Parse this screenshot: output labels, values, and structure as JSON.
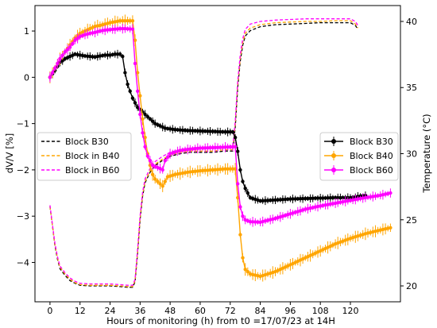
{
  "chart_data": {
    "type": "line",
    "xlabel": "Hours of monitoring (h) from t0 =17/07/23 at 14H",
    "ylabel_left": "dV/V [%]",
    "ylabel_right": "Temperature (°C)",
    "xlim": [
      -6,
      140
    ],
    "ylim_left": [
      -4.85,
      1.55
    ],
    "ylim_right": [
      18.8,
      41.2
    ],
    "xticks": [
      0,
      12,
      24,
      36,
      48,
      60,
      72,
      84,
      96,
      108,
      120
    ],
    "yticks_left": [
      1,
      0,
      -1,
      -2,
      -3,
      -4
    ],
    "yticks_right": [
      40,
      35,
      30,
      25,
      20
    ],
    "grid": false,
    "legend_left": {
      "placement": "center-left",
      "entries": [
        {
          "name": "Block B30",
          "color": "#000000",
          "style": "dashed"
        },
        {
          "name": "Block in B40",
          "color": "#ffa500",
          "style": "dashed"
        },
        {
          "name": "Block in B60",
          "color": "#ff00ff",
          "style": "dashed"
        }
      ]
    },
    "legend_right": {
      "placement": "center-right",
      "entries": [
        {
          "name": "Block B30",
          "color": "#000000",
          "style": "marker"
        },
        {
          "name": "Block B40",
          "color": "#ffa500",
          "style": "marker"
        },
        {
          "name": "Block B60",
          "color": "#ff00ff",
          "style": "marker"
        }
      ]
    },
    "dvv_series": [
      {
        "name": "Block B30",
        "color": "#000000",
        "points": [
          [
            0,
            0
          ],
          [
            2,
            0.15
          ],
          [
            4,
            0.32
          ],
          [
            6,
            0.4
          ],
          [
            8,
            0.45
          ],
          [
            10,
            0.5
          ],
          [
            12,
            0.48
          ],
          [
            14,
            0.46
          ],
          [
            16,
            0.45
          ],
          [
            18,
            0.44
          ],
          [
            20,
            0.46
          ],
          [
            22,
            0.48
          ],
          [
            24,
            0.48
          ],
          [
            26,
            0.5
          ],
          [
            28,
            0.5
          ],
          [
            29,
            0.45
          ],
          [
            30,
            0.1
          ],
          [
            31,
            -0.15
          ],
          [
            33,
            -0.45
          ],
          [
            35,
            -0.65
          ],
          [
            38,
            -0.8
          ],
          [
            40,
            -0.9
          ],
          [
            42,
            -1.0
          ],
          [
            44,
            -1.05
          ],
          [
            46,
            -1.1
          ],
          [
            50,
            -1.13
          ],
          [
            55,
            -1.15
          ],
          [
            60,
            -1.16
          ],
          [
            65,
            -1.17
          ],
          [
            70,
            -1.18
          ],
          [
            73,
            -1.18
          ],
          [
            74,
            -1.3
          ],
          [
            75,
            -1.6
          ],
          [
            76,
            -2.0
          ],
          [
            77,
            -2.25
          ],
          [
            78,
            -2.4
          ],
          [
            80,
            -2.6
          ],
          [
            84,
            -2.67
          ],
          [
            90,
            -2.65
          ],
          [
            96,
            -2.63
          ],
          [
            102,
            -2.62
          ],
          [
            108,
            -2.61
          ],
          [
            114,
            -2.6
          ],
          [
            120,
            -2.6
          ],
          [
            126,
            -2.55
          ]
        ]
      },
      {
        "name": "Block B40",
        "color": "#ffa500",
        "points": [
          [
            0,
            0
          ],
          [
            2,
            0.2
          ],
          [
            4,
            0.4
          ],
          [
            6,
            0.55
          ],
          [
            8,
            0.7
          ],
          [
            10,
            0.85
          ],
          [
            12,
            0.95
          ],
          [
            14,
            1.0
          ],
          [
            16,
            1.05
          ],
          [
            18,
            1.1
          ],
          [
            20,
            1.12
          ],
          [
            22,
            1.15
          ],
          [
            24,
            1.18
          ],
          [
            26,
            1.2
          ],
          [
            28,
            1.22
          ],
          [
            30,
            1.22
          ],
          [
            33,
            1.22
          ],
          [
            34,
            0.8
          ],
          [
            35,
            0.1
          ],
          [
            36,
            -0.4
          ],
          [
            37,
            -0.9
          ],
          [
            38,
            -1.3
          ],
          [
            39,
            -1.65
          ],
          [
            40,
            -1.9
          ],
          [
            41,
            -2.1
          ],
          [
            42,
            -2.2
          ],
          [
            43,
            -2.25
          ],
          [
            44,
            -2.3
          ],
          [
            45,
            -2.35
          ],
          [
            46,
            -2.25
          ],
          [
            47,
            -2.15
          ],
          [
            50,
            -2.1
          ],
          [
            55,
            -2.05
          ],
          [
            60,
            -2.02
          ],
          [
            65,
            -2.0
          ],
          [
            70,
            -1.98
          ],
          [
            74,
            -1.98
          ],
          [
            75,
            -2.6
          ],
          [
            76,
            -3.4
          ],
          [
            77,
            -3.9
          ],
          [
            78,
            -4.15
          ],
          [
            80,
            -4.25
          ],
          [
            84,
            -4.3
          ],
          [
            90,
            -4.2
          ],
          [
            96,
            -4.05
          ],
          [
            102,
            -3.9
          ],
          [
            108,
            -3.75
          ],
          [
            114,
            -3.6
          ],
          [
            120,
            -3.48
          ],
          [
            126,
            -3.38
          ],
          [
            132,
            -3.3
          ],
          [
            136,
            -3.25
          ]
        ]
      },
      {
        "name": "Block B60",
        "color": "#ff00ff",
        "points": [
          [
            0,
            0
          ],
          [
            2,
            0.2
          ],
          [
            4,
            0.4
          ],
          [
            6,
            0.55
          ],
          [
            8,
            0.65
          ],
          [
            10,
            0.8
          ],
          [
            12,
            0.88
          ],
          [
            14,
            0.92
          ],
          [
            16,
            0.95
          ],
          [
            18,
            0.97
          ],
          [
            20,
            1.0
          ],
          [
            22,
            1.02
          ],
          [
            24,
            1.03
          ],
          [
            26,
            1.04
          ],
          [
            28,
            1.05
          ],
          [
            30,
            1.05
          ],
          [
            33,
            1.04
          ],
          [
            34,
            0.3
          ],
          [
            35,
            -0.3
          ],
          [
            36,
            -0.8
          ],
          [
            37,
            -1.2
          ],
          [
            38,
            -1.5
          ],
          [
            39,
            -1.7
          ],
          [
            40,
            -1.8
          ],
          [
            41,
            -1.9
          ],
          [
            42,
            -1.93
          ],
          [
            43,
            -1.95
          ],
          [
            44,
            -1.97
          ],
          [
            45,
            -2.0
          ],
          [
            46,
            -1.8
          ],
          [
            48,
            -1.65
          ],
          [
            52,
            -1.58
          ],
          [
            56,
            -1.55
          ],
          [
            60,
            -1.53
          ],
          [
            65,
            -1.52
          ],
          [
            70,
            -1.51
          ],
          [
            74,
            -1.5
          ],
          [
            75,
            -2.3
          ],
          [
            76,
            -2.8
          ],
          [
            77,
            -3.0
          ],
          [
            78,
            -3.08
          ],
          [
            80,
            -3.12
          ],
          [
            84,
            -3.13
          ],
          [
            90,
            -3.05
          ],
          [
            96,
            -2.95
          ],
          [
            102,
            -2.85
          ],
          [
            108,
            -2.78
          ],
          [
            114,
            -2.72
          ],
          [
            120,
            -2.66
          ],
          [
            126,
            -2.6
          ],
          [
            132,
            -2.55
          ],
          [
            136,
            -2.5
          ]
        ]
      }
    ],
    "temperature_series": [
      {
        "name": "Block B30",
        "color": "#000000",
        "points": [
          [
            0,
            26.0
          ],
          [
            1,
            24.5
          ],
          [
            2,
            23.0
          ],
          [
            3,
            22.0
          ],
          [
            4,
            21.3
          ],
          [
            6,
            20.8
          ],
          [
            8,
            20.4
          ],
          [
            10,
            20.2
          ],
          [
            12,
            20.05
          ],
          [
            16,
            20.0
          ],
          [
            20,
            20.0
          ],
          [
            24,
            20.0
          ],
          [
            28,
            19.95
          ],
          [
            31,
            19.9
          ],
          [
            33,
            19.9
          ],
          [
            34,
            20.3
          ],
          [
            35,
            22.5
          ],
          [
            36,
            25.0
          ],
          [
            37,
            26.8
          ],
          [
            38,
            27.8
          ],
          [
            40,
            28.6
          ],
          [
            42,
            29.1
          ],
          [
            45,
            29.5
          ],
          [
            48,
            29.8
          ],
          [
            52,
            30.0
          ],
          [
            56,
            30.1
          ],
          [
            60,
            30.1
          ],
          [
            65,
            30.1
          ],
          [
            70,
            30.2
          ],
          [
            73,
            30.2
          ],
          [
            74,
            32.0
          ],
          [
            75,
            35.0
          ],
          [
            76,
            37.0
          ],
          [
            77,
            38.2
          ],
          [
            78,
            38.9
          ],
          [
            80,
            39.3
          ],
          [
            84,
            39.6
          ],
          [
            90,
            39.75
          ],
          [
            96,
            39.8
          ],
          [
            102,
            39.85
          ],
          [
            108,
            39.9
          ],
          [
            114,
            39.9
          ],
          [
            120,
            39.9
          ],
          [
            122,
            39.7
          ],
          [
            123,
            39.4
          ]
        ]
      },
      {
        "name": "Block in B40",
        "color": "#ffa500",
        "points": [
          [
            0,
            26.0
          ],
          [
            1,
            24.5
          ],
          [
            2,
            23.1
          ],
          [
            3,
            22.1
          ],
          [
            4,
            21.4
          ],
          [
            6,
            20.9
          ],
          [
            8,
            20.5
          ],
          [
            10,
            20.25
          ],
          [
            12,
            20.1
          ],
          [
            16,
            20.05
          ],
          [
            20,
            20.05
          ],
          [
            24,
            20.05
          ],
          [
            28,
            20.0
          ],
          [
            31,
            19.95
          ],
          [
            33,
            19.95
          ],
          [
            34,
            20.4
          ],
          [
            35,
            22.6
          ],
          [
            36,
            25.1
          ],
          [
            37,
            26.9
          ],
          [
            38,
            27.9
          ],
          [
            40,
            28.7
          ],
          [
            42,
            29.2
          ],
          [
            45,
            29.6
          ],
          [
            48,
            29.9
          ],
          [
            52,
            30.1
          ],
          [
            56,
            30.2
          ],
          [
            60,
            30.2
          ],
          [
            65,
            30.2
          ],
          [
            70,
            30.3
          ],
          [
            73,
            30.3
          ],
          [
            74,
            32.2
          ],
          [
            75,
            35.2
          ],
          [
            76,
            37.2
          ],
          [
            77,
            38.4
          ],
          [
            78,
            39.1
          ],
          [
            80,
            39.5
          ],
          [
            84,
            39.75
          ],
          [
            90,
            39.9
          ],
          [
            96,
            39.95
          ],
          [
            102,
            40.0
          ],
          [
            108,
            40.0
          ],
          [
            114,
            40.05
          ],
          [
            120,
            40.05
          ],
          [
            122,
            39.8
          ],
          [
            123,
            39.5
          ]
        ]
      },
      {
        "name": "Block in B60",
        "color": "#ff00ff",
        "points": [
          [
            0,
            26.1
          ],
          [
            1,
            24.6
          ],
          [
            2,
            23.2
          ],
          [
            3,
            22.2
          ],
          [
            4,
            21.5
          ],
          [
            6,
            21.0
          ],
          [
            8,
            20.6
          ],
          [
            10,
            20.35
          ],
          [
            12,
            20.2
          ],
          [
            16,
            20.15
          ],
          [
            20,
            20.15
          ],
          [
            24,
            20.15
          ],
          [
            28,
            20.1
          ],
          [
            31,
            20.05
          ],
          [
            33,
            20.05
          ],
          [
            34,
            20.5
          ],
          [
            35,
            22.8
          ],
          [
            36,
            25.3
          ],
          [
            37,
            27.1
          ],
          [
            38,
            28.1
          ],
          [
            40,
            28.9
          ],
          [
            42,
            29.4
          ],
          [
            45,
            29.8
          ],
          [
            48,
            30.1
          ],
          [
            52,
            30.3
          ],
          [
            56,
            30.35
          ],
          [
            60,
            30.4
          ],
          [
            65,
            30.4
          ],
          [
            70,
            30.45
          ],
          [
            73,
            30.45
          ],
          [
            74,
            32.5
          ],
          [
            75,
            35.5
          ],
          [
            76,
            37.5
          ],
          [
            77,
            38.7
          ],
          [
            78,
            39.4
          ],
          [
            80,
            39.8
          ],
          [
            84,
            40.0
          ],
          [
            90,
            40.1
          ],
          [
            96,
            40.15
          ],
          [
            102,
            40.2
          ],
          [
            108,
            40.2
          ],
          [
            114,
            40.2
          ],
          [
            120,
            40.2
          ],
          [
            122,
            40.0
          ],
          [
            123,
            39.7
          ]
        ]
      }
    ]
  }
}
